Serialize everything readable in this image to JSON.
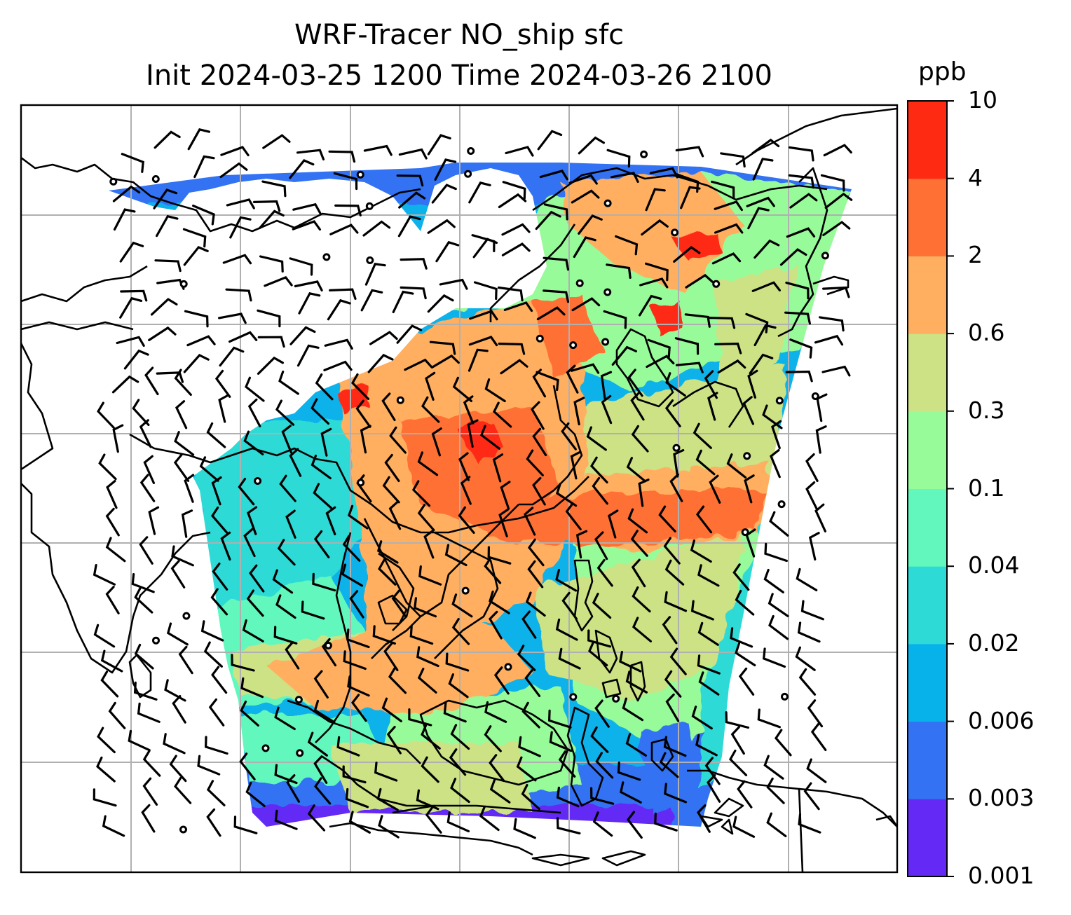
{
  "title": {
    "line1": "WRF-Tracer NO_ship sfc",
    "line2": "Init 2024-03-25 1200 Time 2024-03-26 2100"
  },
  "colorbar": {
    "unit": "ppb",
    "levels": [
      "0.001",
      "0.003",
      "0.006",
      "0.02",
      "0.04",
      "0.1",
      "0.3",
      "0.6",
      "2",
      "4",
      "10"
    ],
    "colors": [
      "#6429f5",
      "#3272f3",
      "#07b2ea",
      "#2edad6",
      "#62f8bd",
      "#98fb9a",
      "#cce285",
      "#ffaf5f",
      "#ff7035",
      "#ff2a12"
    ]
  },
  "map": {
    "frame_color": "#000000",
    "grid_color": "#b0b0b0",
    "coastline_color": "#000000",
    "wind_barb_color": "#000000",
    "no_data_color": "#ffffff"
  }
}
